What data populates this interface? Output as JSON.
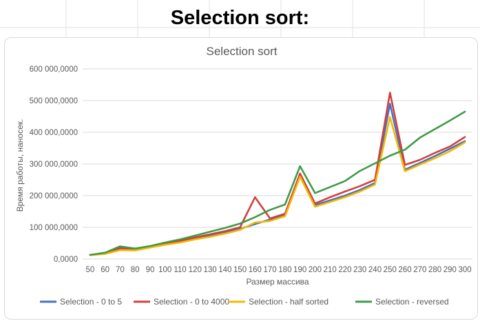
{
  "heading": "Selection sort:",
  "chart_data": {
    "type": "line",
    "title": "Selection sort",
    "xlabel": "Размер массива",
    "ylabel": "Время работы, наносек.",
    "ylim": [
      0,
      600000000
    ],
    "y_ticks": [
      0,
      100000000,
      200000000,
      300000000,
      400000000,
      500000000,
      600000000
    ],
    "y_tick_labels": [
      "0,0000",
      "100 000,0000",
      "200 000,0000",
      "300 000,0000",
      "400 000,0000",
      "500 000,0000",
      "600 000,0000"
    ],
    "grid": true,
    "legend_position": "bottom",
    "categories": [
      "50",
      "60",
      "70",
      "80",
      "90",
      "100",
      "110",
      "120",
      "130",
      "140",
      "150",
      "160",
      "170",
      "180",
      "190",
      "200",
      "210",
      "220",
      "230",
      "240",
      "250",
      "260",
      "270",
      "280",
      "290",
      "300"
    ],
    "series": [
      {
        "name": "Selection - 0 to 5",
        "color": "#4472C4",
        "values": [
          13000000,
          17000000,
          33000000,
          30000000,
          38000000,
          47000000,
          55000000,
          65000000,
          73000000,
          83000000,
          95000000,
          110000000,
          125000000,
          138000000,
          268000000,
          170000000,
          185000000,
          200000000,
          218000000,
          240000000,
          490000000,
          282000000,
          303000000,
          325000000,
          348000000,
          372000000
        ]
      },
      {
        "name": "Selection - 0 to 4000",
        "color": "#D13F3F",
        "values": [
          13000000,
          17000000,
          35000000,
          30000000,
          40000000,
          50000000,
          57000000,
          68000000,
          78000000,
          88000000,
          100000000,
          195000000,
          128000000,
          143000000,
          270000000,
          175000000,
          195000000,
          213000000,
          230000000,
          250000000,
          525000000,
          297000000,
          313000000,
          335000000,
          355000000,
          385000000
        ]
      },
      {
        "name": "Selection - half sorted",
        "color": "#F5B800",
        "values": [
          12000000,
          16000000,
          28000000,
          27000000,
          36000000,
          45000000,
          52000000,
          62000000,
          70000000,
          80000000,
          92000000,
          115000000,
          120000000,
          135000000,
          260000000,
          165000000,
          180000000,
          195000000,
          213000000,
          235000000,
          448000000,
          277000000,
          298000000,
          318000000,
          340000000,
          368000000
        ]
      },
      {
        "name": "Selection - reversed",
        "color": "#3E9A48",
        "values": [
          13000000,
          20000000,
          40000000,
          33000000,
          41000000,
          52000000,
          62000000,
          74000000,
          86000000,
          98000000,
          112000000,
          132000000,
          155000000,
          172000000,
          293000000,
          208000000,
          227000000,
          246000000,
          278000000,
          302000000,
          326000000,
          345000000,
          383000000,
          410000000,
          437000000,
          465000000
        ]
      }
    ]
  }
}
